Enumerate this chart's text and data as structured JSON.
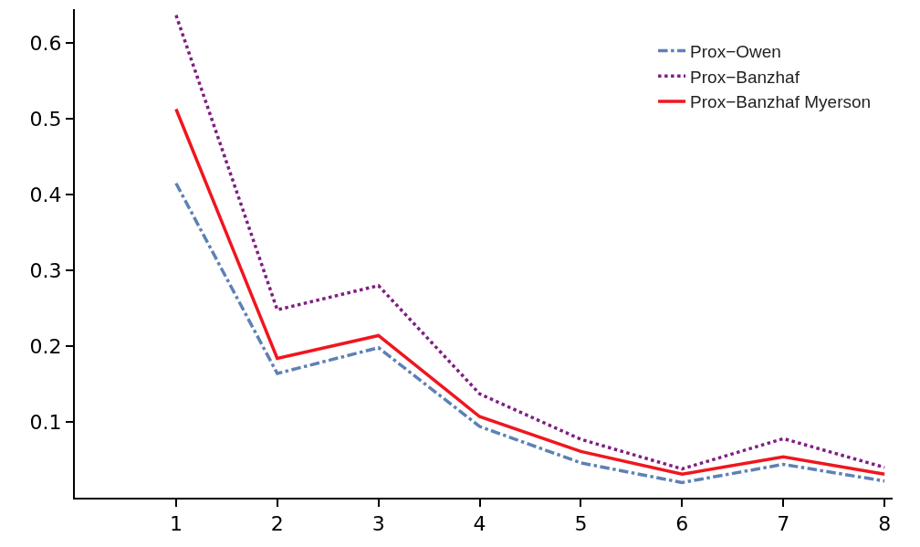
{
  "chart_data": {
    "type": "line",
    "x": [
      1,
      2,
      3,
      4,
      5,
      6,
      7,
      8
    ],
    "series": [
      {
        "name": "Prox−Owen",
        "color": "#5e81b5",
        "line_style": "dashed",
        "values": [
          0.415,
          0.164,
          0.198,
          0.094,
          0.046,
          0.02,
          0.044,
          0.022
        ]
      },
      {
        "name": "Prox−Banzhaf",
        "color": "#7f1e82",
        "line_style": "dotted",
        "values": [
          0.637,
          0.248,
          0.28,
          0.137,
          0.077,
          0.038,
          0.078,
          0.04
        ]
      },
      {
        "name": "Prox−Banzhaf Myerson",
        "color": "#f0161e",
        "line_style": "solid",
        "values": [
          0.513,
          0.184,
          0.214,
          0.107,
          0.061,
          0.031,
          0.054,
          0.031
        ]
      }
    ],
    "xlim": [
      0,
      8.08
    ],
    "xticks": [
      1,
      2,
      3,
      4,
      5,
      6,
      7,
      8
    ],
    "ylim": [
      0,
      0.645
    ],
    "yticks": [
      0.1,
      0.2,
      0.3,
      0.4,
      0.5,
      0.6
    ],
    "grid": false,
    "legend": "top right",
    "marker": "none"
  }
}
